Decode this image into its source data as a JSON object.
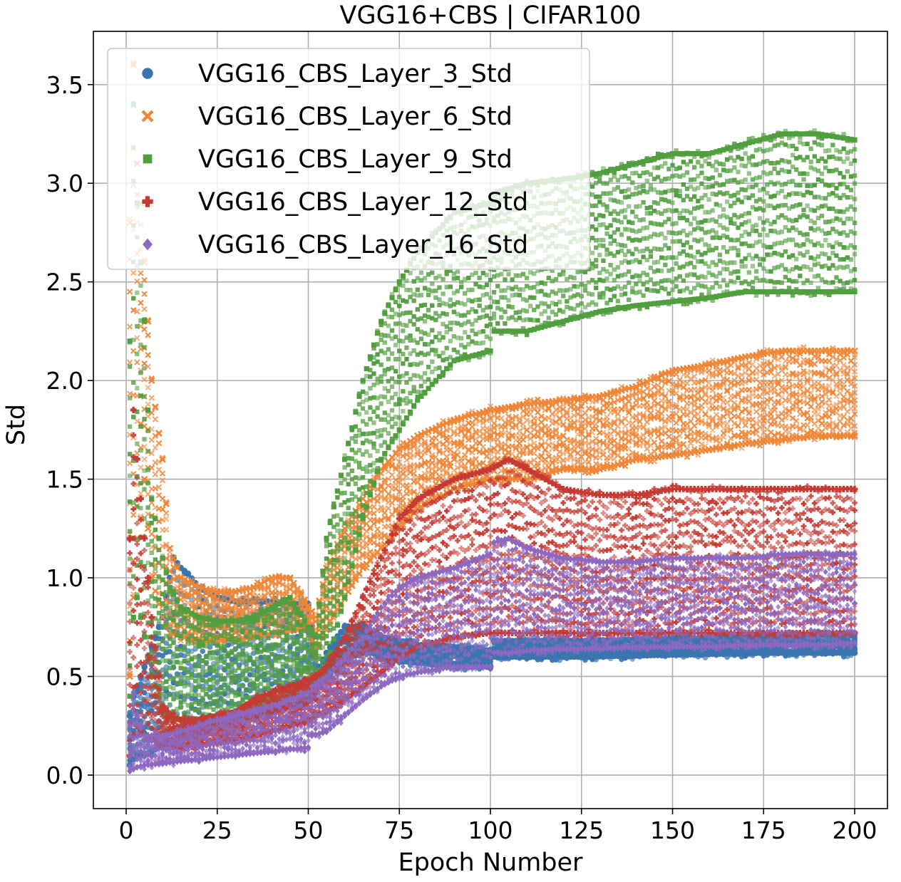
{
  "chart_data": {
    "type": "scatter",
    "title": "VGG16+CBS | CIFAR100",
    "xlabel": "Epoch Number",
    "ylabel": "Std",
    "xlim": [
      -9,
      209
    ],
    "ylim": [
      -0.17,
      3.77
    ],
    "xticks": [
      0,
      25,
      50,
      75,
      100,
      125,
      150,
      175,
      200
    ],
    "yticks": [
      0.0,
      0.5,
      1.0,
      1.5,
      2.0,
      2.5,
      3.0,
      3.5
    ],
    "xtick_labels": [
      "0",
      "25",
      "50",
      "75",
      "100",
      "125",
      "150",
      "175",
      "200"
    ],
    "ytick_labels": [
      "0.0",
      "0.5",
      "1.0",
      "1.5",
      "2.0",
      "2.5",
      "3.0",
      "3.5"
    ],
    "grid": true,
    "legend_position": "upper-left",
    "series": [
      {
        "name": "VGG16_CBS_Layer_3_Std",
        "marker": "circle",
        "color": "#3a75b0",
        "epochs": [
          1,
          2,
          3,
          5,
          10,
          13,
          15,
          17,
          20,
          25,
          30,
          40,
          50,
          53,
          55,
          58,
          60,
          62,
          65,
          68,
          70,
          75,
          80,
          90,
          100,
          101,
          110,
          125,
          150,
          175,
          200
        ],
        "low": [
          0.05,
          0.08,
          0.1,
          0.1,
          0.15,
          0.18,
          0.2,
          0.2,
          0.22,
          0.25,
          0.28,
          0.32,
          0.38,
          0.45,
          0.5,
          0.55,
          0.58,
          0.6,
          0.62,
          0.62,
          0.6,
          0.58,
          0.57,
          0.55,
          0.55,
          0.6,
          0.6,
          0.6,
          0.61,
          0.62,
          0.62
        ],
        "high": [
          0.3,
          0.4,
          0.45,
          0.55,
          0.8,
          1.1,
          1.05,
          1.02,
          0.95,
          0.9,
          0.88,
          0.88,
          0.86,
          0.55,
          0.62,
          0.7,
          0.75,
          0.75,
          0.76,
          0.72,
          0.7,
          0.68,
          0.66,
          0.65,
          0.63,
          0.68,
          0.68,
          0.68,
          0.69,
          0.7,
          0.72
        ]
      },
      {
        "name": "VGG16_CBS_Layer_6_Std",
        "marker": "x",
        "color": "#ef8636",
        "epochs": [
          1,
          2,
          3,
          4,
          5,
          7,
          10,
          12,
          15,
          20,
          25,
          30,
          35,
          40,
          45,
          50,
          52,
          55,
          60,
          65,
          70,
          75,
          80,
          90,
          100,
          110,
          120,
          130,
          140,
          150,
          160,
          170,
          180,
          190,
          200
        ],
        "low": [
          0.5,
          0.9,
          1.2,
          1.3,
          1.5,
          1.0,
          0.8,
          0.72,
          0.7,
          0.68,
          0.68,
          0.69,
          0.7,
          0.72,
          0.73,
          0.75,
          0.6,
          0.75,
          0.9,
          1.05,
          1.15,
          1.25,
          1.35,
          1.45,
          1.5,
          1.5,
          1.55,
          1.55,
          1.6,
          1.62,
          1.65,
          1.68,
          1.7,
          1.72,
          1.72
        ],
        "high": [
          2.8,
          3.6,
          3.1,
          2.9,
          2.6,
          2.0,
          1.6,
          1.15,
          1.0,
          0.95,
          0.93,
          0.93,
          0.95,
          1.0,
          1.0,
          0.86,
          0.8,
          1.05,
          1.25,
          1.4,
          1.55,
          1.65,
          1.72,
          1.8,
          1.85,
          1.88,
          1.9,
          1.92,
          1.97,
          2.05,
          2.08,
          2.12,
          2.15,
          2.15,
          2.15
        ]
      },
      {
        "name": "VGG16_CBS_Layer_9_Std",
        "marker": "square",
        "color": "#519e3e",
        "epochs": [
          1,
          2,
          3,
          5,
          7,
          10,
          12,
          15,
          20,
          25,
          30,
          35,
          40,
          45,
          50,
          52,
          55,
          60,
          65,
          70,
          75,
          80,
          85,
          90,
          100,
          101,
          110,
          120,
          130,
          140,
          150,
          160,
          170,
          180,
          190,
          200
        ],
        "low": [
          0.4,
          0.8,
          0.9,
          0.7,
          0.5,
          0.35,
          0.3,
          0.28,
          0.28,
          0.3,
          0.32,
          0.35,
          0.38,
          0.4,
          0.43,
          0.45,
          0.55,
          0.9,
          1.3,
          1.6,
          1.75,
          1.9,
          2.0,
          2.1,
          2.15,
          2.25,
          2.25,
          2.3,
          2.35,
          2.38,
          2.4,
          2.42,
          2.45,
          2.45,
          2.45,
          2.45
        ],
        "high": [
          2.2,
          3.4,
          2.9,
          2.3,
          1.4,
          1.1,
          0.95,
          0.85,
          0.8,
          0.78,
          0.78,
          0.8,
          0.85,
          0.9,
          0.75,
          0.7,
          1.2,
          1.6,
          2.0,
          2.3,
          2.5,
          2.65,
          2.75,
          2.85,
          2.9,
          2.95,
          3.0,
          3.02,
          3.05,
          3.1,
          3.15,
          3.15,
          3.2,
          3.25,
          3.25,
          3.22
        ]
      },
      {
        "name": "VGG16_CBS_Layer_12_Std",
        "marker": "plus",
        "color": "#c53a32",
        "epochs": [
          1,
          2,
          3,
          5,
          7,
          10,
          12,
          15,
          20,
          25,
          30,
          35,
          40,
          45,
          50,
          52,
          55,
          60,
          65,
          70,
          75,
          80,
          90,
          100,
          105,
          110,
          120,
          130,
          140,
          150,
          160,
          170,
          180,
          190,
          200
        ],
        "low": [
          0.1,
          0.2,
          0.25,
          0.2,
          0.18,
          0.15,
          0.15,
          0.14,
          0.15,
          0.16,
          0.18,
          0.2,
          0.22,
          0.25,
          0.27,
          0.3,
          0.32,
          0.38,
          0.45,
          0.52,
          0.6,
          0.65,
          0.7,
          0.72,
          0.72,
          0.72,
          0.72,
          0.72,
          0.72,
          0.72,
          0.72,
          0.72,
          0.72,
          0.72,
          0.72
        ],
        "high": [
          1.2,
          1.85,
          1.6,
          1.2,
          0.8,
          0.35,
          0.3,
          0.28,
          0.28,
          0.3,
          0.32,
          0.38,
          0.42,
          0.45,
          0.48,
          0.5,
          0.55,
          0.7,
          0.9,
          1.1,
          1.3,
          1.4,
          1.5,
          1.55,
          1.6,
          1.55,
          1.45,
          1.42,
          1.42,
          1.45,
          1.45,
          1.45,
          1.45,
          1.45,
          1.45
        ]
      },
      {
        "name": "VGG16_CBS_Layer_16_Std",
        "marker": "diamond",
        "color": "#8c68c0",
        "epochs": [
          1,
          2,
          3,
          5,
          10,
          15,
          20,
          25,
          30,
          35,
          40,
          45,
          50,
          51,
          55,
          60,
          65,
          70,
          75,
          80,
          90,
          100,
          101,
          105,
          110,
          120,
          130,
          140,
          150,
          160,
          170,
          180,
          190,
          200
        ],
        "low": [
          0.02,
          0.03,
          0.04,
          0.05,
          0.06,
          0.07,
          0.08,
          0.09,
          0.1,
          0.11,
          0.12,
          0.13,
          0.14,
          0.2,
          0.22,
          0.3,
          0.38,
          0.45,
          0.5,
          0.52,
          0.55,
          0.55,
          0.62,
          0.62,
          0.63,
          0.64,
          0.64,
          0.65,
          0.65,
          0.65,
          0.66,
          0.66,
          0.66,
          0.67
        ],
        "high": [
          0.25,
          0.42,
          0.3,
          0.2,
          0.2,
          0.22,
          0.25,
          0.28,
          0.3,
          0.33,
          0.35,
          0.38,
          0.42,
          0.45,
          0.5,
          0.6,
          0.7,
          0.85,
          0.95,
          1.0,
          1.05,
          1.12,
          1.18,
          1.2,
          1.15,
          1.1,
          1.08,
          1.08,
          1.1,
          1.1,
          1.1,
          1.12,
          1.12,
          1.12
        ]
      }
    ]
  }
}
